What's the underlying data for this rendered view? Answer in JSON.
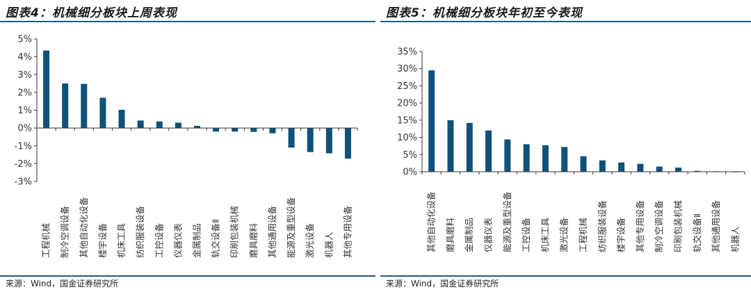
{
  "colors": {
    "bar": "#0f5178",
    "axis": "#333333",
    "rule": "#1f5b86"
  },
  "charts": [
    {
      "title": "图表4：机械细分板块上周表现",
      "source": "来源：Wind，国金证券研究所"
    },
    {
      "title": "图表5：机械细分板块年初至今表现",
      "source": "来源：Wind，国金证券研究所"
    }
  ],
  "chart_data": [
    {
      "type": "bar",
      "title": "图表4：机械细分板块上周表现",
      "categories": [
        "工程机械",
        "制冷空调设备",
        "其他自动化设备",
        "楼宇设备",
        "机床工具",
        "纺织服装设备",
        "工控设备",
        "仪器仪表",
        "金属制品",
        "轨交设备Ⅱ",
        "印刷包装机械",
        "磨具磨料",
        "其他通用设备",
        "能源及重型设备",
        "激光设备",
        "机器人",
        "其他专用设备"
      ],
      "values": [
        4.35,
        2.5,
        2.48,
        1.7,
        1.02,
        0.42,
        0.37,
        0.3,
        0.12,
        -0.2,
        -0.2,
        -0.22,
        -0.3,
        -1.1,
        -1.35,
        -1.42,
        -1.72
      ],
      "ylim": [
        -3,
        5
      ],
      "yticks": [
        -3,
        -2,
        -1,
        0,
        1,
        2,
        3,
        4,
        5
      ],
      "ytick_format": "percent",
      "grid": false,
      "legend": "none"
    },
    {
      "type": "bar",
      "title": "图表5：机械细分板块年初至今表现",
      "categories": [
        "其他自动化设备",
        "磨具磨料",
        "金属制品",
        "仪器仪表",
        "能源及重型设备",
        "工控设备",
        "机床工具",
        "激光设备",
        "工程机械",
        "纺织服装设备",
        "楼宇设备",
        "其他专用设备",
        "制冷空调设备",
        "印刷包装机械",
        "轨交设备Ⅱ",
        "其他通用设备",
        "机器人"
      ],
      "values": [
        29.5,
        15.0,
        14.2,
        12.0,
        9.4,
        8.0,
        7.7,
        7.2,
        4.5,
        3.3,
        2.7,
        2.3,
        1.5,
        1.2,
        0.25,
        0.15,
        0.05
      ],
      "ylim": [
        0,
        35
      ],
      "yticks": [
        0,
        5,
        10,
        15,
        20,
        25,
        30,
        35
      ],
      "ytick_format": "percent",
      "grid": false,
      "legend": "none"
    }
  ]
}
